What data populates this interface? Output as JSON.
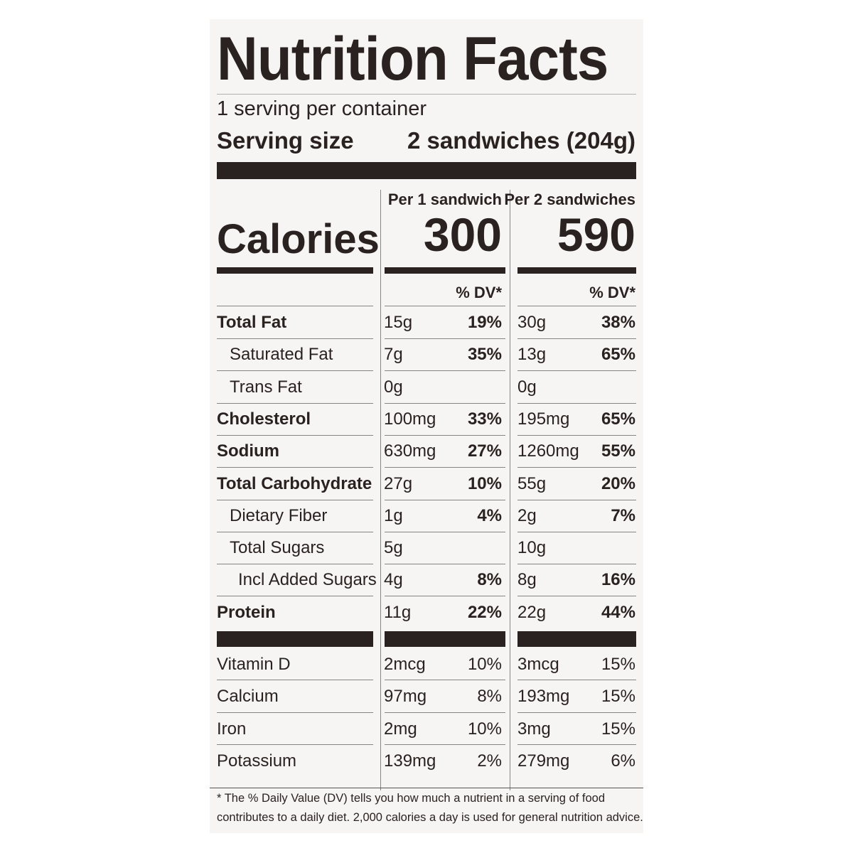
{
  "label": {
    "title": "Nutrition Facts",
    "servings_per_container": "1 serving per container",
    "serving_size_label": "Serving size",
    "serving_size_value": "2 sandwiches (204g)",
    "calories_label": "Calories",
    "columns": [
      {
        "header": "Per 1 sandwich",
        "calories": "300",
        "dv_header": "% DV*"
      },
      {
        "header": "Per 2 sandwiches",
        "calories": "590",
        "dv_header": "% DV*"
      }
    ],
    "nutrients": [
      {
        "name": "Total Fat",
        "c1_amount": "15g",
        "c1_dv": "19%",
        "c2_amount": "30g",
        "c2_dv": "38%"
      },
      {
        "name": "Saturated Fat",
        "c1_amount": "7g",
        "c1_dv": "35%",
        "c2_amount": "13g",
        "c2_dv": "65%"
      },
      {
        "name": "Trans Fat",
        "c1_amount": "0g",
        "c1_dv": "",
        "c2_amount": "0g",
        "c2_dv": ""
      },
      {
        "name": "Cholesterol",
        "c1_amount": "100mg",
        "c1_dv": "33%",
        "c2_amount": "195mg",
        "c2_dv": "65%"
      },
      {
        "name": "Sodium",
        "c1_amount": "630mg",
        "c1_dv": "27%",
        "c2_amount": "1260mg",
        "c2_dv": "55%"
      },
      {
        "name": "Total Carbohydrate",
        "c1_amount": "27g",
        "c1_dv": "10%",
        "c2_amount": "55g",
        "c2_dv": "20%"
      },
      {
        "name": "Dietary Fiber",
        "c1_amount": "1g",
        "c1_dv": "4%",
        "c2_amount": "2g",
        "c2_dv": "7%"
      },
      {
        "name": "Total Sugars",
        "c1_amount": "5g",
        "c1_dv": "",
        "c2_amount": "10g",
        "c2_dv": ""
      },
      {
        "name": "Incl Added Sugars",
        "c1_amount": "4g",
        "c1_dv": "8%",
        "c2_amount": "8g",
        "c2_dv": "16%"
      },
      {
        "name": "Protein",
        "c1_amount": "11g",
        "c1_dv": "22%",
        "c2_amount": "22g",
        "c2_dv": "44%"
      }
    ],
    "vitamins": [
      {
        "name": "Vitamin D",
        "c1_amount": "2mcg",
        "c1_dv": "10%",
        "c2_amount": "3mcg",
        "c2_dv": "15%"
      },
      {
        "name": "Calcium",
        "c1_amount": "97mg",
        "c1_dv": "8%",
        "c2_amount": "193mg",
        "c2_dv": "15%"
      },
      {
        "name": "Iron",
        "c1_amount": "2mg",
        "c1_dv": "10%",
        "c2_amount": "3mg",
        "c2_dv": "15%"
      },
      {
        "name": "Potassium",
        "c1_amount": "139mg",
        "c1_dv": "2%",
        "c2_amount": "279mg",
        "c2_dv": "6%"
      }
    ],
    "footnote": "* The % Daily Value (DV) tells you how much a nutrient in a serving of food contributes to a daily diet. 2,000 calories a day is used for general nutrition advice."
  }
}
